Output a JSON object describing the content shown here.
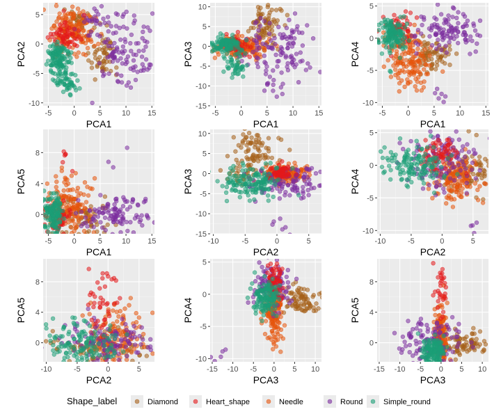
{
  "legend": {
    "title": "Shape_label",
    "items": [
      {
        "label": "Diamond",
        "color": "#A6611A"
      },
      {
        "label": "Heart_shape",
        "color": "#E41A1C"
      },
      {
        "label": "Needle",
        "color": "#E6550D"
      },
      {
        "label": "Round",
        "color": "#7B2D9E"
      },
      {
        "label": "Simple_round",
        "color": "#1B9E77"
      }
    ]
  },
  "chart_data": [
    {
      "type": "scatter",
      "xlabel": "PCA1",
      "ylabel": "PCA2",
      "xlim": [
        -6,
        15.5
      ],
      "ylim": [
        -10.5,
        7
      ],
      "xticks": [
        -5,
        0,
        5,
        10,
        15
      ],
      "yticks": [
        -10,
        -5,
        0,
        5
      ],
      "clusters": {
        "Round": [
          {
            "cx": 9,
            "cy": -1,
            "sx": 2.8,
            "sy": 3.0,
            "n": 110
          },
          {
            "cx": 4,
            "cy": 4.5,
            "sx": 1.5,
            "sy": 1.2,
            "n": 20
          }
        ],
        "Diamond": [
          {
            "cx": 5.5,
            "cy": -2.5,
            "sx": 1.3,
            "sy": 2.3,
            "n": 55
          },
          {
            "cx": 1,
            "cy": 3.5,
            "sx": 1.8,
            "sy": 1.2,
            "n": 35
          }
        ],
        "Needle": [
          {
            "cx": 0,
            "cy": 2,
            "sx": 2.0,
            "sy": 2.0,
            "n": 150
          }
        ],
        "Heart_shape": [
          {
            "cx": -1.5,
            "cy": 1,
            "sx": 1.4,
            "sy": 1.4,
            "n": 60
          }
        ],
        "Simple_round": [
          {
            "cx": -3,
            "cy": -2.5,
            "sx": 1.2,
            "sy": 1.5,
            "n": 120
          },
          {
            "cx": -1.5,
            "cy": -6.5,
            "sx": 1.2,
            "sy": 1.1,
            "n": 45
          }
        ]
      }
    },
    {
      "type": "scatter",
      "xlabel": "PCA1",
      "ylabel": "PCA3",
      "xlim": [
        -6,
        15.5
      ],
      "ylim": [
        -15,
        11
      ],
      "xticks": [
        -5,
        0,
        5,
        10,
        15
      ],
      "yticks": [
        -15,
        -10,
        -5,
        0,
        5,
        10
      ],
      "clusters": {
        "Diamond": [
          {
            "cx": 4.5,
            "cy": 5.5,
            "sx": 1.4,
            "sy": 2.6,
            "n": 80
          }
        ],
        "Round": [
          {
            "cx": 8,
            "cy": 0,
            "sx": 3.0,
            "sy": 4.0,
            "n": 110
          },
          {
            "cx": 7,
            "cy": -9,
            "sx": 1.5,
            "sy": 2.5,
            "n": 12
          }
        ],
        "Needle": [
          {
            "cx": 0,
            "cy": -0.3,
            "sx": 2.2,
            "sy": 1.3,
            "n": 150
          }
        ],
        "Heart_shape": [
          {
            "cx": -1,
            "cy": 0.5,
            "sx": 1.3,
            "sy": 1.1,
            "n": 60
          }
        ],
        "Simple_round": [
          {
            "cx": -3,
            "cy": 0.5,
            "sx": 1.3,
            "sy": 1.2,
            "n": 110
          },
          {
            "cx": -1,
            "cy": -5,
            "sx": 1.2,
            "sy": 1.5,
            "n": 40
          }
        ]
      }
    },
    {
      "type": "scatter",
      "xlabel": "PCA1",
      "ylabel": "PCA4",
      "xlim": [
        -6,
        15.5
      ],
      "ylim": [
        -10.5,
        5.5
      ],
      "xticks": [
        -5,
        0,
        5,
        10,
        15
      ],
      "yticks": [
        -10,
        -5,
        0,
        5
      ],
      "clusters": {
        "Round": [
          {
            "cx": 8,
            "cy": 1,
            "sx": 3.2,
            "sy": 1.8,
            "n": 110
          },
          {
            "cx": 6,
            "cy": -9,
            "sx": 1.0,
            "sy": 0.8,
            "n": 6
          }
        ],
        "Diamond": [
          {
            "cx": 4.5,
            "cy": -2.5,
            "sx": 1.7,
            "sy": 1.3,
            "n": 70
          }
        ],
        "Needle": [
          {
            "cx": 0,
            "cy": -3,
            "sx": 2.0,
            "sy": 2.4,
            "n": 150
          }
        ],
        "Heart_shape": [
          {
            "cx": -2,
            "cy": 1.5,
            "sx": 1.3,
            "sy": 1.6,
            "n": 60
          }
        ],
        "Simple_round": [
          {
            "cx": -3,
            "cy": 0.5,
            "sx": 1.4,
            "sy": 1.4,
            "n": 130
          }
        ]
      }
    },
    {
      "type": "scatter",
      "xlabel": "PCA1",
      "ylabel": "PCA5",
      "xlim": [
        -6,
        15.5
      ],
      "ylim": [
        -2.5,
        11
      ],
      "xticks": [
        -5,
        0,
        5,
        10,
        15
      ],
      "yticks": [
        0,
        4,
        8
      ],
      "clusters": {
        "Round": [
          {
            "cx": 8,
            "cy": 0,
            "sx": 3.0,
            "sy": 1.2,
            "n": 110
          },
          {
            "cx": 8,
            "cy": 8.5,
            "sx": 1.5,
            "sy": 1.5,
            "n": 3
          }
        ],
        "Diamond": [
          {
            "cx": 2,
            "cy": 0,
            "sx": 3.0,
            "sy": 1.3,
            "n": 70
          }
        ],
        "Needle": [
          {
            "cx": -1,
            "cy": 1,
            "sx": 2.0,
            "sy": 2.0,
            "n": 150
          }
        ],
        "Heart_shape": [
          {
            "cx": -3,
            "cy": -0.5,
            "sx": 1.2,
            "sy": 1.0,
            "n": 55
          },
          {
            "cx": -2,
            "cy": 7.5,
            "sx": 1.0,
            "sy": 1.0,
            "n": 6
          }
        ],
        "Simple_round": [
          {
            "cx": -4,
            "cy": 0,
            "sx": 1.0,
            "sy": 1.3,
            "n": 130
          }
        ]
      }
    },
    {
      "type": "scatter",
      "xlabel": "PCA2",
      "ylabel": "PCA3",
      "xlim": [
        -10.5,
        7
      ],
      "ylim": [
        -15,
        11
      ],
      "xticks": [
        -10,
        -5,
        0,
        5
      ],
      "yticks": [
        -15,
        -10,
        -5,
        0,
        5,
        10
      ],
      "clusters": {
        "Diamond": [
          {
            "cx": -3.5,
            "cy": 6,
            "sx": 1.8,
            "sy": 2.6,
            "n": 80
          },
          {
            "cx": -6,
            "cy": -0.5,
            "sx": 1.5,
            "sy": 1.2,
            "n": 25
          }
        ],
        "Round": [
          {
            "cx": 1.5,
            "cy": -2,
            "sx": 3.0,
            "sy": 2.0,
            "n": 120
          },
          {
            "cx": 0,
            "cy": -12,
            "sx": 1.5,
            "sy": 1.5,
            "n": 6
          }
        ],
        "Needle": [
          {
            "cx": 1.5,
            "cy": 0,
            "sx": 1.8,
            "sy": 1.0,
            "n": 150
          }
        ],
        "Heart_shape": [
          {
            "cx": 0.5,
            "cy": 0,
            "sx": 1.0,
            "sy": 0.8,
            "n": 60
          }
        ],
        "Simple_round": [
          {
            "cx": -4,
            "cy": -2,
            "sx": 2.2,
            "sy": 1.8,
            "n": 140
          }
        ]
      }
    },
    {
      "type": "scatter",
      "xlabel": "PCA2",
      "ylabel": "PCA4",
      "xlim": [
        -10.5,
        7.5
      ],
      "ylim": [
        -10.5,
        5.5
      ],
      "xticks": [
        -10,
        -5,
        0,
        5
      ],
      "yticks": [
        -10,
        -5,
        0,
        5
      ],
      "clusters": {
        "Round": [
          {
            "cx": 0,
            "cy": 0.5,
            "sx": 3.3,
            "sy": 2.3,
            "n": 130
          },
          {
            "cx": 5,
            "cy": -9.5,
            "sx": 1.3,
            "sy": 0.8,
            "n": 5
          }
        ],
        "Diamond": [
          {
            "cx": 4,
            "cy": -0.5,
            "sx": 2.0,
            "sy": 1.8,
            "n": 80
          }
        ],
        "Needle": [
          {
            "cx": 2,
            "cy": -2,
            "sx": 1.8,
            "sy": 2.0,
            "n": 150
          }
        ],
        "Heart_shape": [
          {
            "cx": -0.5,
            "cy": 1.5,
            "sx": 1.3,
            "sy": 1.5,
            "n": 60
          }
        ],
        "Simple_round": [
          {
            "cx": -4,
            "cy": 0,
            "sx": 2.5,
            "sy": 1.5,
            "n": 130
          }
        ]
      }
    },
    {
      "type": "scatter",
      "xlabel": "PCA2",
      "ylabel": "PCA5",
      "xlim": [
        -10.5,
        7.5
      ],
      "ylim": [
        -2.5,
        11
      ],
      "xticks": [
        -10,
        -5,
        0,
        5
      ],
      "yticks": [
        0,
        4,
        8
      ],
      "clusters": {
        "Needle": [
          {
            "cx": 1,
            "cy": 1,
            "sx": 2.2,
            "sy": 2.0,
            "n": 150
          }
        ],
        "Round": [
          {
            "cx": 0,
            "cy": 0,
            "sx": 3.5,
            "sy": 1.5,
            "n": 120
          }
        ],
        "Diamond": [
          {
            "cx": -1,
            "cy": -0.5,
            "sx": 4.5,
            "sy": 1.0,
            "n": 80
          }
        ],
        "Heart_shape": [
          {
            "cx": 0,
            "cy": 5,
            "sx": 2.0,
            "sy": 2.5,
            "n": 40
          }
        ],
        "Simple_round": [
          {
            "cx": -4,
            "cy": 0,
            "sx": 3.0,
            "sy": 1.5,
            "n": 130
          }
        ]
      }
    },
    {
      "type": "scatter",
      "xlabel": "PCA3",
      "ylabel": "PCA4",
      "xlim": [
        -15.5,
        11.5
      ],
      "ylim": [
        -10.5,
        5.5
      ],
      "xticks": [
        -15,
        -10,
        -5,
        0,
        5,
        10
      ],
      "yticks": [
        -10,
        -5,
        0,
        5
      ],
      "clusters": {
        "Diamond": [
          {
            "cx": 6.5,
            "cy": -1,
            "sx": 2.2,
            "sy": 1.2,
            "n": 80
          }
        ],
        "Round": [
          {
            "cx": -0.5,
            "cy": 1.5,
            "sx": 2.5,
            "sy": 1.8,
            "n": 120
          },
          {
            "cx": -13,
            "cy": -9.5,
            "sx": 1.3,
            "sy": 0.7,
            "n": 5
          }
        ],
        "Needle": [
          {
            "cx": 0,
            "cy": -3,
            "sx": 1.0,
            "sy": 2.3,
            "n": 150
          }
        ],
        "Heart_shape": [
          {
            "cx": 0,
            "cy": 1.5,
            "sx": 1.0,
            "sy": 1.6,
            "n": 60
          }
        ],
        "Simple_round": [
          {
            "cx": -2,
            "cy": -0.5,
            "sx": 1.5,
            "sy": 1.3,
            "n": 130
          }
        ]
      }
    },
    {
      "type": "scatter",
      "xlabel": "PCA3",
      "ylabel": "PCA5",
      "xlim": [
        -15.5,
        11.5
      ],
      "ylim": [
        -2.5,
        11
      ],
      "xticks": [
        -15,
        -10,
        -5,
        0,
        5,
        10
      ],
      "yticks": [
        0,
        4,
        8
      ],
      "clusters": {
        "Needle": [
          {
            "cx": 0,
            "cy": 1,
            "sx": 0.8,
            "sy": 1.8,
            "n": 150
          }
        ],
        "Diamond": [
          {
            "cx": 6,
            "cy": 0,
            "sx": 2.8,
            "sy": 0.8,
            "n": 80
          }
        ],
        "Round": [
          {
            "cx": -3,
            "cy": 0,
            "sx": 3.5,
            "sy": 1.5,
            "n": 120
          }
        ],
        "Heart_shape": [
          {
            "cx": 0,
            "cy": 6.5,
            "sx": 0.7,
            "sy": 1.8,
            "n": 30
          }
        ],
        "Simple_round": [
          {
            "cx": -2,
            "cy": -1,
            "sx": 1.5,
            "sy": 0.9,
            "n": 130
          }
        ]
      }
    }
  ]
}
